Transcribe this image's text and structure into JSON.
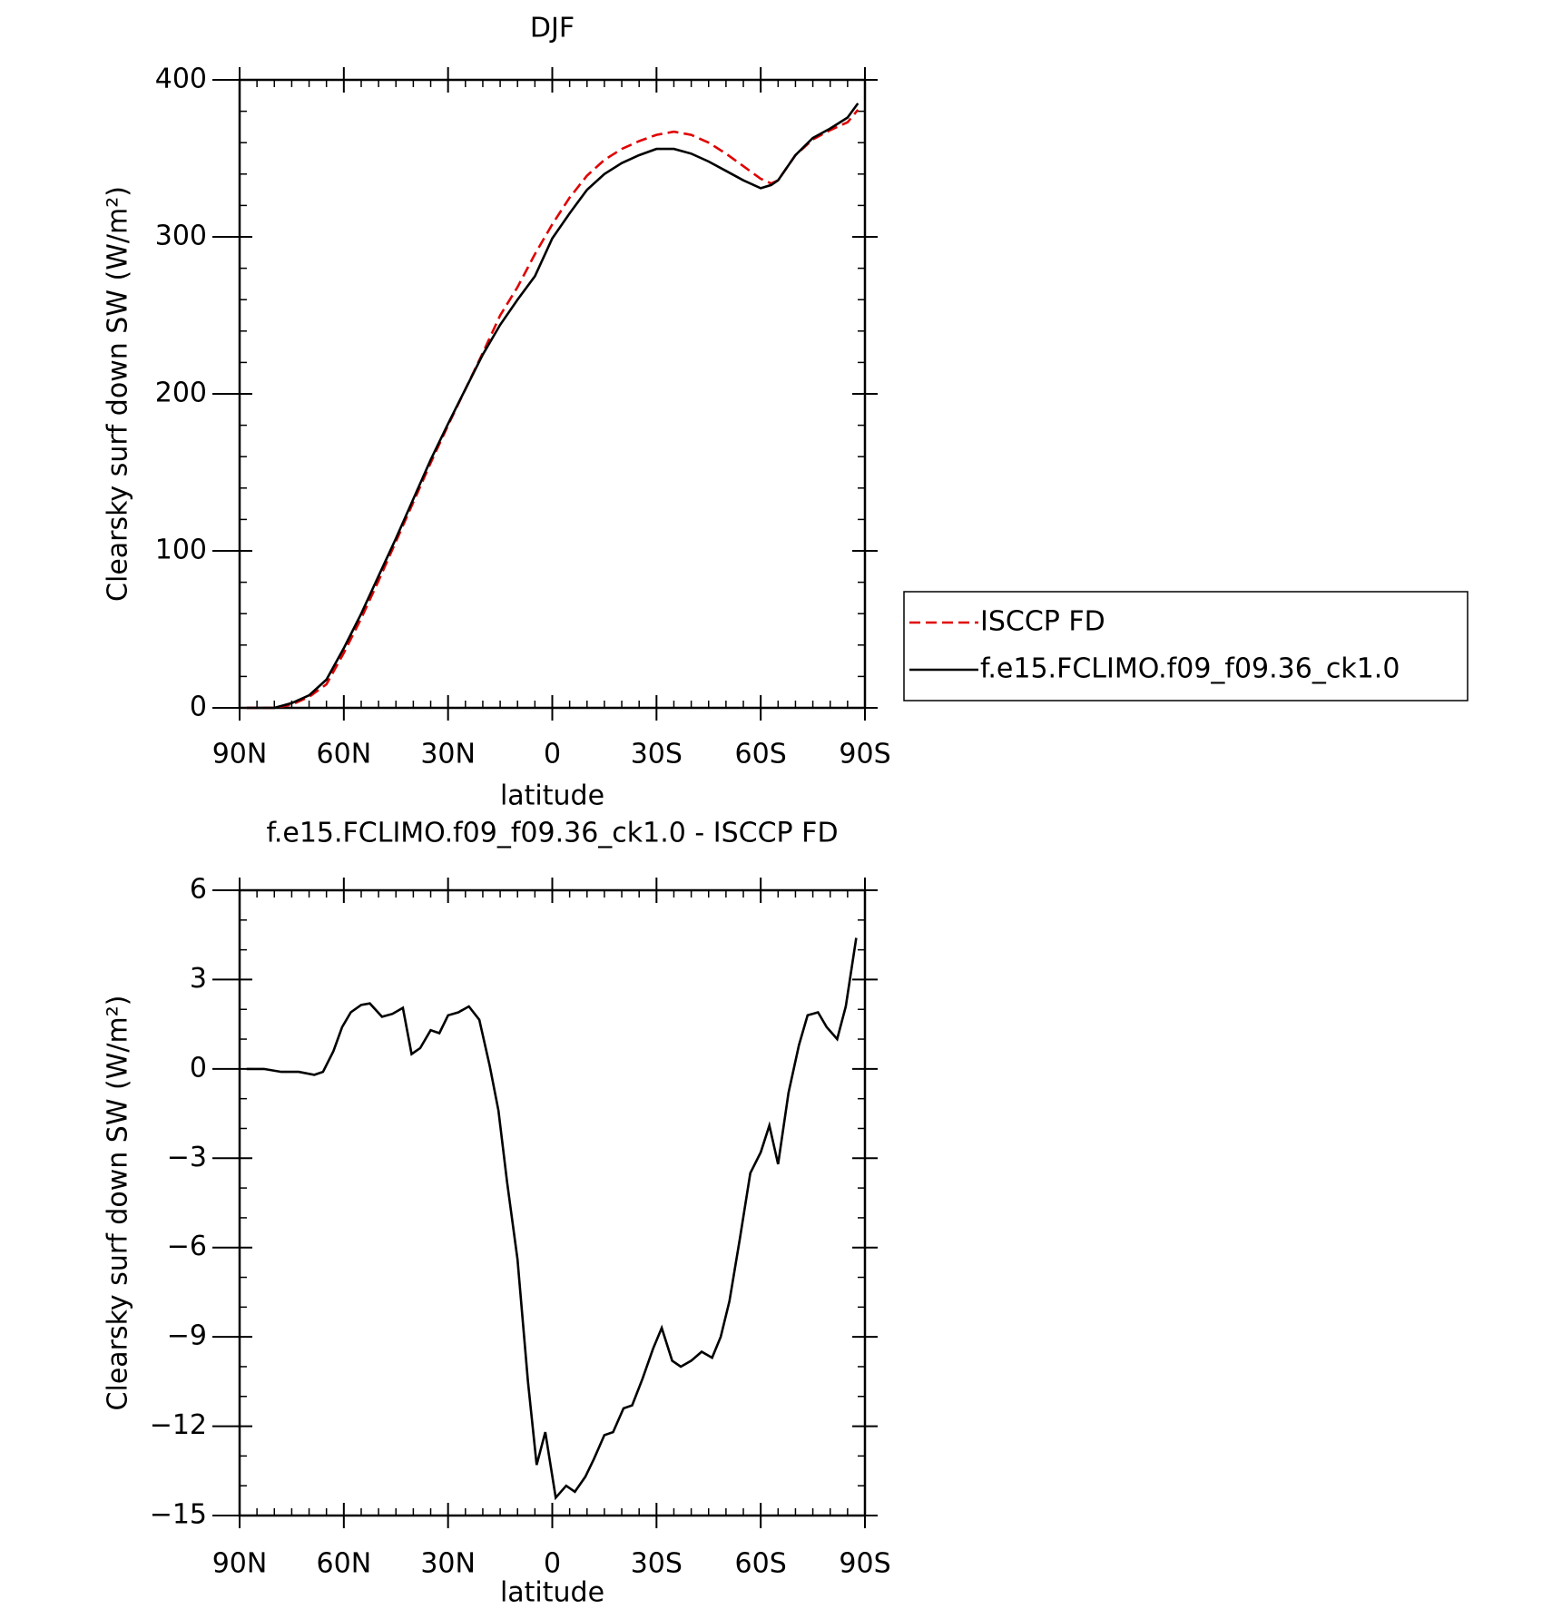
{
  "chart_data": [
    {
      "type": "line",
      "title": "DJF",
      "xlabel": "latitude",
      "ylabel": "Clearsky surf down SW (W/m²)",
      "x": [
        88,
        80,
        75,
        70,
        65,
        60,
        55,
        50,
        45,
        40,
        35,
        30,
        25,
        20,
        15,
        10,
        5,
        0,
        -5,
        -10,
        -15,
        -20,
        -25,
        -30,
        -35,
        -40,
        -45,
        -50,
        -55,
        -60,
        -63,
        -65,
        -70,
        -75,
        -80,
        -85,
        -88
      ],
      "series": [
        {
          "name": "ISCCP FD",
          "color": "#e00000",
          "linestyle": "dashed",
          "values": [
            0,
            0,
            2,
            7,
            15,
            35,
            57,
            81,
            106,
            131,
            156,
            180,
            203,
            226,
            250,
            268,
            289,
            308,
            325,
            339,
            349,
            356,
            361,
            365,
            367,
            365,
            360,
            353,
            345,
            337,
            334,
            336,
            352,
            362,
            368,
            373,
            381
          ]
        },
        {
          "name": "f.e15.FCLIMO.f09_f09.36_ck1.0",
          "color": "#000000",
          "linestyle": "solid",
          "values": [
            0,
            0,
            3,
            8,
            18,
            38,
            60,
            84,
            108,
            133,
            158,
            181,
            203,
            225,
            244,
            260,
            275,
            299,
            315,
            330,
            340,
            347,
            352,
            356,
            356,
            353,
            348,
            342,
            336,
            331,
            333,
            336,
            352,
            363,
            369,
            376,
            385
          ]
        }
      ],
      "xlim": [
        90,
        -90
      ],
      "xticks": [
        {
          "value": 90,
          "label": "90N"
        },
        {
          "value": 60,
          "label": "60N"
        },
        {
          "value": 30,
          "label": "30N"
        },
        0,
        {
          "value": -30,
          "label": "30S"
        },
        {
          "value": -60,
          "label": "60S"
        },
        {
          "value": -90,
          "label": "90S"
        }
      ],
      "ylim": [
        0,
        400
      ],
      "yticks": [
        0,
        100,
        200,
        300,
        400
      ],
      "legend": "outside-right"
    },
    {
      "type": "line",
      "title": "f.e15.FCLIMO.f09_f09.36_ck1.0 - ISCCP FD",
      "xlabel": "latitude",
      "ylabel": "Clearsky surf down SW (W/m²)",
      "x": [
        88,
        83,
        78,
        73,
        68.5,
        66,
        63,
        60.5,
        58,
        55,
        52.5,
        49,
        46,
        43,
        40.5,
        38,
        35,
        32.5,
        30,
        27,
        24,
        21,
        18,
        15.5,
        13,
        10,
        7,
        4.5,
        2,
        -1,
        -4,
        -6.5,
        -9.5,
        -12,
        -15,
        -17.5,
        -20.5,
        -23,
        -26,
        -29,
        -31.5,
        -34.5,
        -37,
        -40,
        -43,
        -46,
        -48.5,
        -51,
        -54,
        -57,
        -60,
        -62.5,
        -65,
        -68,
        -71,
        -73.5,
        -76.5,
        -79,
        -82,
        -84.5,
        -87.5
      ],
      "values": [
        0,
        0,
        -0.1,
        -0.1,
        -0.2,
        -0.1,
        0.6,
        1.4,
        1.9,
        2.15,
        2.2,
        1.75,
        1.85,
        2.05,
        0.5,
        0.7,
        1.3,
        1.2,
        1.8,
        1.9,
        2.1,
        1.65,
        0.1,
        -1.4,
        -3.8,
        -6.4,
        -10.5,
        -13.3,
        -12.2,
        -14.4,
        -14,
        -14.2,
        -13.7,
        -13.1,
        -12.3,
        -12.2,
        -11.4,
        -11.3,
        -10.4,
        -9.4,
        -8.7,
        -9.8,
        -10,
        -9.8,
        -9.5,
        -9.7,
        -9,
        -7.8,
        -5.7,
        -3.5,
        -2.8,
        -1.9,
        -3.2,
        -0.8,
        0.8,
        1.8,
        1.9,
        1.4,
        1.0,
        2.1,
        4.4
      ],
      "color": "#000000",
      "xlim": [
        90,
        -90
      ],
      "xticks": [
        {
          "value": 90,
          "label": "90N"
        },
        {
          "value": 60,
          "label": "60N"
        },
        {
          "value": 30,
          "label": "30N"
        },
        0,
        {
          "value": -30,
          "label": "30S"
        },
        {
          "value": -60,
          "label": "60S"
        },
        {
          "value": -90,
          "label": "90S"
        }
      ],
      "ylim": [
        -15,
        6
      ],
      "yticks": [
        {
          "value": -15,
          "label": "−15"
        },
        {
          "value": -12,
          "label": "−12"
        },
        {
          "value": -9,
          "label": "−9"
        },
        {
          "value": -6,
          "label": "−6"
        },
        {
          "value": -3,
          "label": "−3"
        },
        0,
        3,
        6
      ]
    }
  ]
}
